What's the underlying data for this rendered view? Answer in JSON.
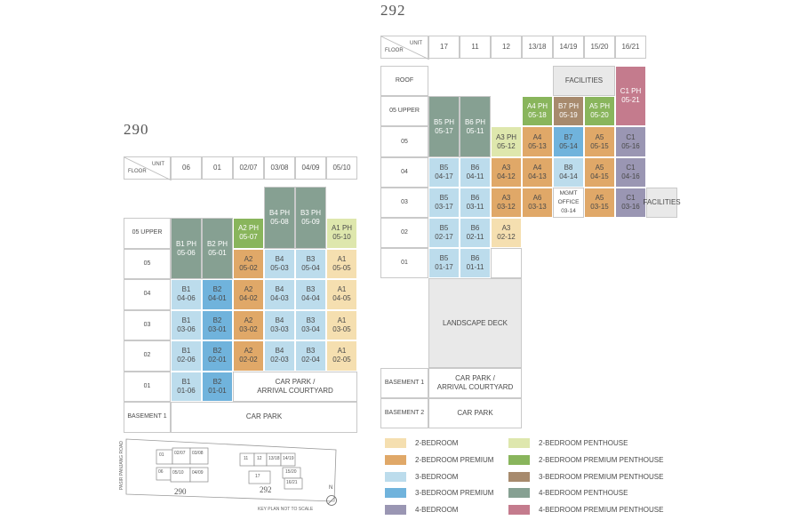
{
  "titles": {
    "b290": "290",
    "b292": "292"
  },
  "header_labels": {
    "unit": "UNIT",
    "floor": "FLOOR"
  },
  "colors": {
    "2br": "#f5dfb0",
    "2br_premium": "#e0a868",
    "3br": "#bcdcec",
    "3br_premium": "#70b3dc",
    "4br": "#9a96b3",
    "2br_ph": "#dee7ad",
    "2br_premium_ph": "#89b55c",
    "3br_premium_ph": "#a78a6d",
    "4br_ph": "#86a092",
    "4br_premium_ph": "#c47b8d",
    "facilities": "#e9e9e9",
    "plain": "#ffffff"
  },
  "b290": {
    "units": [
      "06",
      "01",
      "02/07",
      "03/08",
      "04/09",
      "05/10"
    ],
    "floors": [
      "05 UPPER",
      "05",
      "04",
      "03",
      "02",
      "01",
      "BASEMENT 1"
    ],
    "cells": [
      {
        "t": "B1 PH",
        "c": "05-06",
        "col": 0,
        "row": 0,
        "rs": 2,
        "k": "4br_ph"
      },
      {
        "t": "B2 PH",
        "c": "05-01",
        "col": 1,
        "row": 0,
        "rs": 2,
        "k": "4br_ph"
      },
      {
        "t": "A2 PH",
        "c": "05-07",
        "col": 2,
        "row": 0,
        "rs": 1,
        "k": "2br_premium_ph"
      },
      {
        "t": "B4 PH",
        "c": "05-08",
        "col": 3,
        "row": -1,
        "rs": 2,
        "k": "4br_ph"
      },
      {
        "t": "B3 PH",
        "c": "05-09",
        "col": 4,
        "row": -1,
        "rs": 2,
        "k": "4br_ph"
      },
      {
        "t": "A1 PH",
        "c": "05-10",
        "col": 5,
        "row": 0,
        "rs": 1,
        "k": "2br_ph"
      },
      {
        "t": "A2",
        "c": "05-02",
        "col": 2,
        "row": 1,
        "rs": 1,
        "k": "2br_premium"
      },
      {
        "t": "B4",
        "c": "05-03",
        "col": 3,
        "row": 1,
        "rs": 1,
        "k": "3br"
      },
      {
        "t": "B3",
        "c": "05-04",
        "col": 4,
        "row": 1,
        "rs": 1,
        "k": "3br"
      },
      {
        "t": "A1",
        "c": "05-05",
        "col": 5,
        "row": 1,
        "rs": 1,
        "k": "2br"
      },
      {
        "t": "B1",
        "c": "04-06",
        "col": 0,
        "row": 2,
        "rs": 1,
        "k": "3br"
      },
      {
        "t": "B2",
        "c": "04-01",
        "col": 1,
        "row": 2,
        "rs": 1,
        "k": "3br_premium"
      },
      {
        "t": "A2",
        "c": "04-02",
        "col": 2,
        "row": 2,
        "rs": 1,
        "k": "2br_premium"
      },
      {
        "t": "B4",
        "c": "04-03",
        "col": 3,
        "row": 2,
        "rs": 1,
        "k": "3br"
      },
      {
        "t": "B3",
        "c": "04-04",
        "col": 4,
        "row": 2,
        "rs": 1,
        "k": "3br"
      },
      {
        "t": "A1",
        "c": "04-05",
        "col": 5,
        "row": 2,
        "rs": 1,
        "k": "2br"
      },
      {
        "t": "B1",
        "c": "03-06",
        "col": 0,
        "row": 3,
        "rs": 1,
        "k": "3br"
      },
      {
        "t": "B2",
        "c": "03-01",
        "col": 1,
        "row": 3,
        "rs": 1,
        "k": "3br_premium"
      },
      {
        "t": "A2",
        "c": "03-02",
        "col": 2,
        "row": 3,
        "rs": 1,
        "k": "2br_premium"
      },
      {
        "t": "B4",
        "c": "03-03",
        "col": 3,
        "row": 3,
        "rs": 1,
        "k": "3br"
      },
      {
        "t": "B3",
        "c": "03-04",
        "col": 4,
        "row": 3,
        "rs": 1,
        "k": "3br"
      },
      {
        "t": "A1",
        "c": "03-05",
        "col": 5,
        "row": 3,
        "rs": 1,
        "k": "2br"
      },
      {
        "t": "B1",
        "c": "02-06",
        "col": 0,
        "row": 4,
        "rs": 1,
        "k": "3br"
      },
      {
        "t": "B2",
        "c": "02-01",
        "col": 1,
        "row": 4,
        "rs": 1,
        "k": "3br_premium"
      },
      {
        "t": "A2",
        "c": "02-02",
        "col": 2,
        "row": 4,
        "rs": 1,
        "k": "2br_premium"
      },
      {
        "t": "B4",
        "c": "02-03",
        "col": 3,
        "row": 4,
        "rs": 1,
        "k": "3br"
      },
      {
        "t": "B3",
        "c": "02-04",
        "col": 4,
        "row": 4,
        "rs": 1,
        "k": "3br"
      },
      {
        "t": "A1",
        "c": "02-05",
        "col": 5,
        "row": 4,
        "rs": 1,
        "k": "2br"
      },
      {
        "t": "B1",
        "c": "01-06",
        "col": 0,
        "row": 5,
        "rs": 1,
        "k": "3br"
      },
      {
        "t": "B2",
        "c": "01-01",
        "col": 1,
        "row": 5,
        "rs": 1,
        "k": "3br_premium"
      },
      {
        "t": "CAR PARK /",
        "c": "ARRIVAL COURTYARD",
        "col": 2,
        "row": 5,
        "rs": 1,
        "cs": 4,
        "k": "plain"
      },
      {
        "t": "CAR PARK",
        "c": "",
        "col": 0,
        "row": 6,
        "rs": 1,
        "cs": 6,
        "k": "plain"
      }
    ]
  },
  "b292": {
    "units": [
      "17",
      "11",
      "12",
      "13/18",
      "14/19",
      "15/20",
      "16/21"
    ],
    "floors": [
      "ROOF",
      "05 UPPER",
      "05",
      "04",
      "03",
      "02",
      "01",
      "",
      "BASEMENT 1",
      "BASEMENT 2"
    ],
    "cells": [
      {
        "t": "FACILITIES",
        "c": "",
        "col": 4,
        "row": 0,
        "rs": 1,
        "cs": 2,
        "k": "facilities"
      },
      {
        "t": "C1 PH",
        "c": "05-21",
        "col": 6,
        "row": 0,
        "rs": 2,
        "k": "4br_premium_ph"
      },
      {
        "t": "B5 PH",
        "c": "05-17",
        "col": 0,
        "row": 1,
        "rs": 2,
        "k": "4br_ph"
      },
      {
        "t": "B6 PH",
        "c": "05-11",
        "col": 1,
        "row": 1,
        "rs": 2,
        "k": "4br_ph"
      },
      {
        "t": "A4 PH",
        "c": "05-18",
        "col": 3,
        "row": 1,
        "rs": 1,
        "k": "2br_premium_ph"
      },
      {
        "t": "B7 PH",
        "c": "05-19",
        "col": 4,
        "row": 1,
        "rs": 1,
        "k": "3br_premium_ph"
      },
      {
        "t": "A5 PH",
        "c": "05-20",
        "col": 5,
        "row": 1,
        "rs": 1,
        "k": "2br_premium_ph"
      },
      {
        "t": "A3 PH",
        "c": "05-12",
        "col": 2,
        "row": 2,
        "rs": 1,
        "k": "2br_ph"
      },
      {
        "t": "A4",
        "c": "05-13",
        "col": 3,
        "row": 2,
        "rs": 1,
        "k": "2br_premium"
      },
      {
        "t": "B7",
        "c": "05-14",
        "col": 4,
        "row": 2,
        "rs": 1,
        "k": "3br_premium"
      },
      {
        "t": "A5",
        "c": "05-15",
        "col": 5,
        "row": 2,
        "rs": 1,
        "k": "2br_premium"
      },
      {
        "t": "C1",
        "c": "05-16",
        "col": 6,
        "row": 2,
        "rs": 1,
        "k": "4br"
      },
      {
        "t": "B5",
        "c": "04-17",
        "col": 0,
        "row": 3,
        "rs": 1,
        "k": "3br"
      },
      {
        "t": "B6",
        "c": "04-11",
        "col": 1,
        "row": 3,
        "rs": 1,
        "k": "3br"
      },
      {
        "t": "A3",
        "c": "04-12",
        "col": 2,
        "row": 3,
        "rs": 1,
        "k": "2br_premium"
      },
      {
        "t": "A4",
        "c": "04-13",
        "col": 3,
        "row": 3,
        "rs": 1,
        "k": "2br_premium"
      },
      {
        "t": "B8",
        "c": "04-14",
        "col": 4,
        "row": 3,
        "rs": 1,
        "k": "3br"
      },
      {
        "t": "A5",
        "c": "04-15",
        "col": 5,
        "row": 3,
        "rs": 1,
        "k": "2br_premium"
      },
      {
        "t": "C1",
        "c": "04-16",
        "col": 6,
        "row": 3,
        "rs": 1,
        "k": "4br"
      },
      {
        "t": "B5",
        "c": "03-17",
        "col": 0,
        "row": 4,
        "rs": 1,
        "k": "3br"
      },
      {
        "t": "B6",
        "c": "03-11",
        "col": 1,
        "row": 4,
        "rs": 1,
        "k": "3br"
      },
      {
        "t": "A3",
        "c": "03-12",
        "col": 2,
        "row": 4,
        "rs": 1,
        "k": "2br_premium"
      },
      {
        "t": "A6",
        "c": "03-13",
        "col": 3,
        "row": 4,
        "rs": 1,
        "k": "2br_premium"
      },
      {
        "t": "MGMT",
        "c": "OFFICE",
        "e": "03-14",
        "col": 4,
        "row": 4,
        "rs": 1,
        "k": "plain",
        "small": true
      },
      {
        "t": "A5",
        "c": "03-15",
        "col": 5,
        "row": 4,
        "rs": 1,
        "k": "2br_premium"
      },
      {
        "t": "C1",
        "c": "03-16",
        "col": 6,
        "row": 4,
        "rs": 1,
        "k": "4br"
      },
      {
        "t": "FACILITIES",
        "c": "",
        "col": 7,
        "row": 4,
        "rs": 1,
        "k": "facilities"
      },
      {
        "t": "B5",
        "c": "02-17",
        "col": 0,
        "row": 5,
        "rs": 1,
        "k": "3br"
      },
      {
        "t": "B6",
        "c": "02-11",
        "col": 1,
        "row": 5,
        "rs": 1,
        "k": "3br"
      },
      {
        "t": "A3",
        "c": "02-12",
        "col": 2,
        "row": 5,
        "rs": 1,
        "k": "2br"
      },
      {
        "t": "B5",
        "c": "01-17",
        "col": 0,
        "row": 6,
        "rs": 1,
        "k": "3br"
      },
      {
        "t": "B6",
        "c": "01-11",
        "col": 1,
        "row": 6,
        "rs": 1,
        "k": "3br"
      },
      {
        "t": "",
        "c": "",
        "col": 2,
        "row": 6,
        "rs": 1,
        "k": "plain"
      },
      {
        "t": "LANDSCAPE DECK",
        "c": "",
        "col": 0,
        "row": 7,
        "rs": 1,
        "cs": 3,
        "k": "facilities"
      },
      {
        "t": "CAR PARK /",
        "c": "ARRIVAL COURTYARD",
        "col": 0,
        "row": 8,
        "rs": 1,
        "cs": 3,
        "k": "plain"
      },
      {
        "t": "CAR PARK",
        "c": "",
        "col": 0,
        "row": 9,
        "rs": 1,
        "cs": 3,
        "k": "plain"
      }
    ]
  },
  "legend": [
    {
      "label": "2-BEDROOM",
      "k": "2br"
    },
    {
      "label": "2-BEDROOM PREMIUM",
      "k": "2br_premium"
    },
    {
      "label": "3-BEDROOM",
      "k": "3br"
    },
    {
      "label": "3-BEDROOM PREMIUM",
      "k": "3br_premium"
    },
    {
      "label": "4-BEDROOM",
      "k": "4br"
    },
    {
      "label": "2-BEDROOM PENTHOUSE",
      "k": "2br_ph"
    },
    {
      "label": "2-BEDROOM PREMIUM PENTHOUSE",
      "k": "2br_premium_ph"
    },
    {
      "label": "3-BEDROOM PREMIUM PENTHOUSE",
      "k": "3br_premium_ph"
    },
    {
      "label": "4-BEDROOM PENTHOUSE",
      "k": "4br_ph"
    },
    {
      "label": "4-BEDROOM PREMIUM PENTHOUSE",
      "k": "4br_premium_ph"
    }
  ],
  "keyplan": {
    "road": "PASIR PANJANG ROAD",
    "note": "KEY PLAN NOT TO SCALE",
    "north": "N",
    "b290": "290",
    "b292": "292",
    "units290": [
      "01",
      "02/07",
      "03/08",
      "06",
      "05/10",
      "04/09"
    ],
    "units292": [
      "11",
      "12",
      "13/18",
      "14/19",
      "17",
      "15/20",
      "16/21"
    ]
  }
}
